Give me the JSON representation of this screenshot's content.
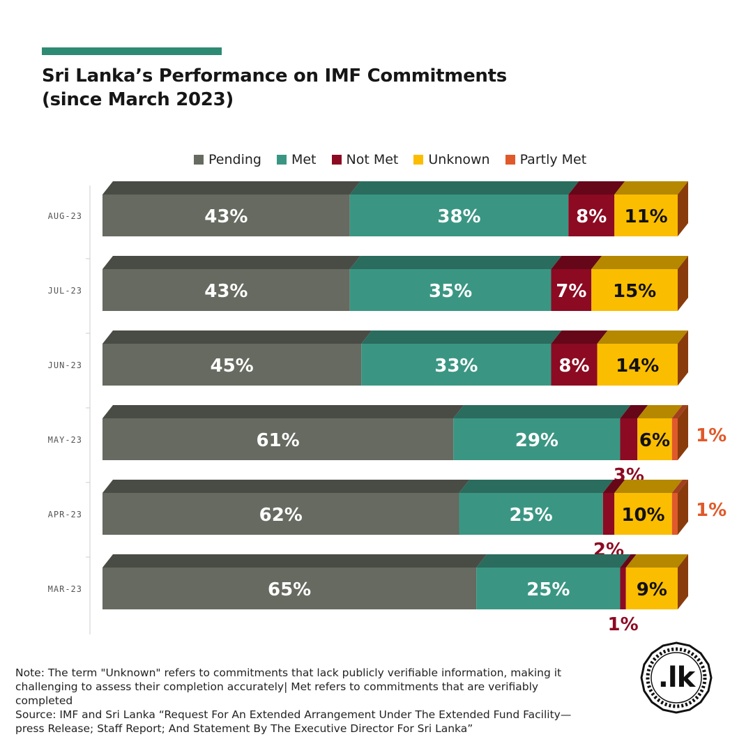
{
  "title": {
    "line1": "Sri Lanka’s Performance on IMF Commitments",
    "line2": "(since March 2023)"
  },
  "legend": [
    {
      "label": "Pending",
      "color": "#666a60"
    },
    {
      "label": "Met",
      "color": "#3a9683"
    },
    {
      "label": "Not Met",
      "color": "#8c0a22"
    },
    {
      "label": "Unknown",
      "color": "#fbbd00"
    },
    {
      "label": "Partly Met",
      "color": "#e0592a"
    }
  ],
  "chart_data": {
    "type": "bar",
    "orientation": "horizontal",
    "stacked": true,
    "categories": [
      "AUG-23",
      "JUL-23",
      "JUN-23",
      "MAY-23",
      "APR-23",
      "MAR-23"
    ],
    "series": [
      {
        "name": "Pending",
        "values": [
          43,
          43,
          45,
          61,
          62,
          65
        ]
      },
      {
        "name": "Met",
        "values": [
          38,
          35,
          33,
          29,
          25,
          25
        ]
      },
      {
        "name": "Not Met",
        "values": [
          8,
          7,
          8,
          3,
          2,
          1
        ]
      },
      {
        "name": "Unknown",
        "values": [
          11,
          15,
          14,
          6,
          10,
          9
        ]
      },
      {
        "name": "Partly Met",
        "values": [
          0,
          0,
          0,
          1,
          1,
          0
        ]
      }
    ],
    "xlim": [
      0,
      100
    ],
    "value_suffix": "%",
    "legend_position": "top"
  },
  "note": {
    "line1": "Note: The term \"Unknown\" refers to commitments that lack publicly verifiable information, making it challenging to assess their completion accurately| Met refers to commitments that are verifiably completed",
    "line2": "Source: IMF and Sri Lanka “Request For An Extended Arrangement Under The Extended Fund Facility—press Release; Staff Report; And Statement By The Executive Director For Sri Lanka”"
  },
  "logo": {
    "text": ".lk"
  }
}
